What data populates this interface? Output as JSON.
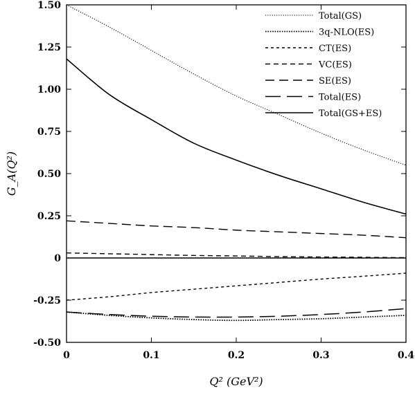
{
  "chart_data": {
    "type": "line",
    "xlabel": "Q² (GeV²)",
    "ylabel": "G_A(Q²)",
    "xlim": [
      0,
      0.4
    ],
    "ylim": [
      -0.5,
      1.5
    ],
    "grid": false,
    "legend_position": "top-right",
    "x_ticks": [
      0,
      0.1,
      0.2,
      0.3,
      0.4
    ],
    "x_tick_labels": [
      "0",
      "0.1",
      "0.2",
      "0.3",
      "0.4"
    ],
    "y_ticks": [
      -0.5,
      -0.25,
      0,
      0.25,
      0.5,
      0.75,
      1.0,
      1.25,
      1.5
    ],
    "y_tick_labels": [
      "-0.50",
      "-0.25",
      "0",
      "0.25",
      "0.50",
      "0.75",
      "1.00",
      "1.25",
      "1.50"
    ],
    "x": [
      0,
      0.05,
      0.1,
      0.15,
      0.2,
      0.25,
      0.3,
      0.35,
      0.4
    ],
    "series": [
      {
        "name": "Total(GS)",
        "dash": "dotted",
        "values": [
          1.5,
          1.37,
          1.23,
          1.09,
          0.96,
          0.85,
          0.74,
          0.64,
          0.55
        ]
      },
      {
        "name": "3q-NLO(ES)",
        "dash": "dotted-heavy",
        "values": [
          -0.32,
          -0.34,
          -0.355,
          -0.365,
          -0.37,
          -0.365,
          -0.36,
          -0.35,
          -0.34
        ]
      },
      {
        "name": "CT(ES)",
        "dash": "short",
        "values": [
          -0.25,
          -0.23,
          -0.205,
          -0.185,
          -0.165,
          -0.145,
          -0.125,
          -0.108,
          -0.09
        ]
      },
      {
        "name": "VC(ES)",
        "dash": "medium",
        "values": [
          0.03,
          0.025,
          0.02,
          0.015,
          0.012,
          0.008,
          0.006,
          0.004,
          0.002
        ]
      },
      {
        "name": "SE(ES)",
        "dash": "long",
        "values": [
          0.22,
          0.205,
          0.19,
          0.18,
          0.165,
          0.155,
          0.145,
          0.135,
          0.12
        ]
      },
      {
        "name": "Total(ES)",
        "dash": "longer",
        "values": [
          -0.32,
          -0.335,
          -0.345,
          -0.35,
          -0.35,
          -0.345,
          -0.335,
          -0.32,
          -0.3
        ]
      },
      {
        "name": "Total(GS+ES)",
        "dash": "solid",
        "values": [
          1.18,
          0.97,
          0.82,
          0.68,
          0.58,
          0.49,
          0.41,
          0.33,
          0.26
        ]
      }
    ],
    "reference_lines": [
      {
        "y": 0
      }
    ]
  }
}
